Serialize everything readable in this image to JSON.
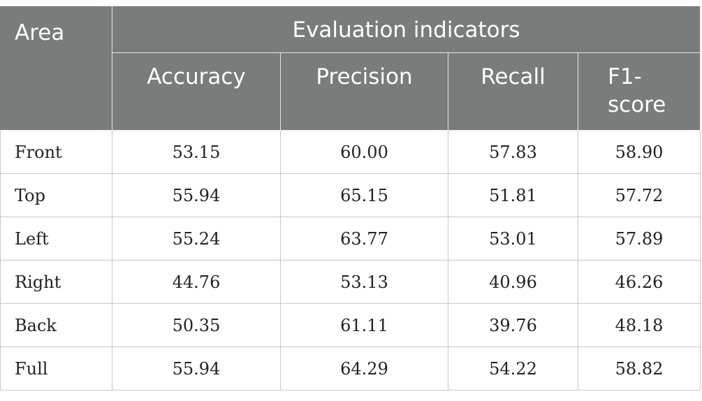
{
  "table": {
    "header": {
      "area": "Area",
      "group": "Evaluation indicators",
      "columns": [
        "Accuracy",
        "Precision",
        "Recall",
        "F1-\nscore"
      ]
    },
    "rows": [
      {
        "area": "Front",
        "values": [
          "53.15",
          "60.00",
          "57.83",
          "58.90"
        ]
      },
      {
        "area": "Top",
        "values": [
          "55.94",
          "65.15",
          "51.81",
          "57.72"
        ]
      },
      {
        "area": "Left",
        "values": [
          "55.24",
          "63.77",
          "53.01",
          "57.89"
        ]
      },
      {
        "area": "Right",
        "values": [
          "44.76",
          "53.13",
          "40.96",
          "46.26"
        ]
      },
      {
        "area": "Back",
        "values": [
          "50.35",
          "61.11",
          "39.76",
          "48.18"
        ]
      },
      {
        "area": "Full",
        "values": [
          "55.94",
          "64.29",
          "54.22",
          "58.82"
        ]
      }
    ]
  },
  "colors": {
    "header_background": "#7a7b7b",
    "header_text": "#ffffff",
    "body_text": "#222222",
    "grid_line": "#c8c8c8"
  }
}
